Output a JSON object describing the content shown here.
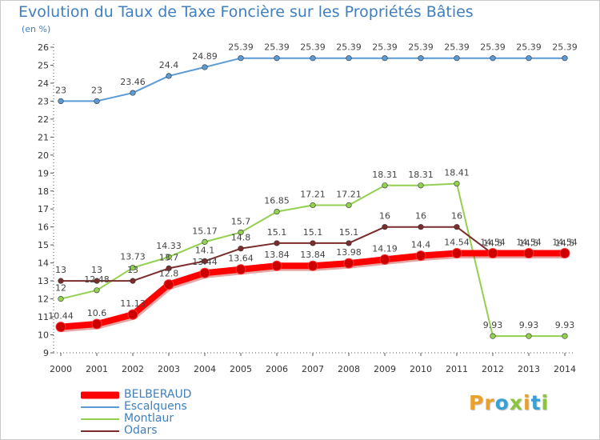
{
  "chart_data": {
    "type": "line",
    "title": "Evolution du Taux de Taxe Foncière sur les Propriétés Bâties",
    "ylabel": "(en %)",
    "xlabel": "",
    "ylim": [
      9,
      26
    ],
    "yticks": [
      "9",
      "10",
      "11",
      "12",
      "13",
      "14",
      "15",
      "16",
      "17",
      "18",
      "19",
      "20",
      "21",
      "22",
      "23",
      "24",
      "25",
      "26"
    ],
    "categories": [
      "2000",
      "2001",
      "2002",
      "2003",
      "2004",
      "2005",
      "2006",
      "2007",
      "2008",
      "2009",
      "2010",
      "2011",
      "2012",
      "2013",
      "2014"
    ],
    "grid": false,
    "legend_position": "bottom-left",
    "series": [
      {
        "name": "Escalquens",
        "color": "#5a9bd5",
        "values": [
          23,
          23,
          23.46,
          24.4,
          24.89,
          25.39,
          25.39,
          25.39,
          25.39,
          25.39,
          25.39,
          25.39,
          25.39,
          25.39,
          25.39
        ],
        "labels": [
          "23",
          "23",
          "23.46",
          "24.4",
          "24.89",
          "25.39",
          "25.39",
          "25.39",
          "25.39",
          "25.39",
          "25.39",
          "25.39",
          "25.39",
          "25.39",
          "25.39"
        ]
      },
      {
        "name": "Montlaur",
        "color": "#92d050",
        "values": [
          12,
          12.48,
          13.73,
          14.33,
          15.17,
          15.7,
          16.85,
          17.21,
          17.21,
          18.31,
          18.31,
          18.41,
          9.93,
          9.93,
          9.93
        ],
        "labels": [
          "12",
          "12.48",
          "13.73",
          "14.33",
          "15.17",
          "15.7",
          "16.85",
          "17.21",
          "17.21",
          "18.31",
          "18.31",
          "18.41",
          "9.93",
          "9.93",
          "9.93"
        ]
      },
      {
        "name": "Odars",
        "color": "#7b2c2c",
        "values": [
          13,
          13,
          13,
          13.7,
          14.1,
          14.8,
          15.1,
          15.1,
          15.1,
          16,
          16,
          16,
          14.5,
          14.5,
          14.5
        ],
        "labels": [
          "13",
          "13",
          "13",
          "13.7",
          "14.1",
          "14.8",
          "15.1",
          "15.1",
          "15.1",
          "16",
          "16",
          "16",
          "14.5",
          "14.5",
          "14.5"
        ]
      },
      {
        "name": "BELBERAUD",
        "color": "#ff0000",
        "values": [
          10.44,
          10.6,
          11.13,
          12.8,
          13.44,
          13.64,
          13.84,
          13.84,
          13.98,
          14.19,
          14.4,
          14.54,
          14.54,
          14.54,
          14.54
        ],
        "labels": [
          "10.44",
          "10.6",
          "11.13",
          "12.8",
          "13.44",
          "13.64",
          "13.84",
          "13.84",
          "13.98",
          "14.19",
          "14.4",
          "14.54",
          "14.54",
          "14.54",
          "14.54"
        ]
      }
    ],
    "legend": [
      {
        "name": "BELBERAUD",
        "color": "#ff0000"
      },
      {
        "name": "Escalquens",
        "color": "#5a9bd5"
      },
      {
        "name": "Montlaur",
        "color": "#92d050"
      },
      {
        "name": "Odars",
        "color": "#7b2c2c"
      }
    ]
  },
  "logo": {
    "letters": [
      "P",
      "r",
      "o",
      "x",
      "i",
      "t",
      "i"
    ],
    "colors": [
      "#e9a12c",
      "#e9a12c",
      "#39a0d6",
      "#8cc43c",
      "#e9a12c",
      "#39a0d6",
      "#8cc43c"
    ]
  }
}
